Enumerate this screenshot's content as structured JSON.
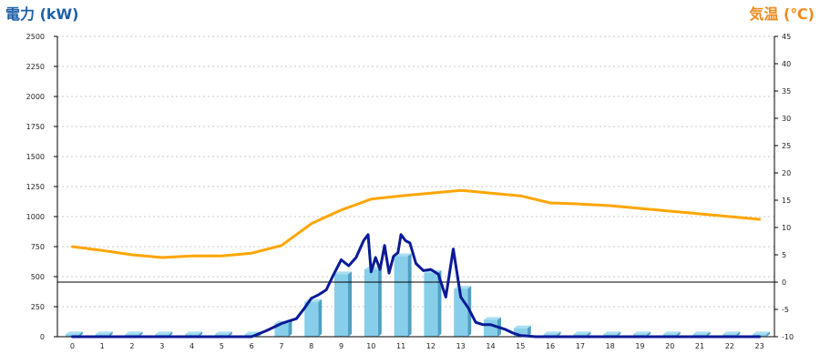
{
  "titles": {
    "left": "電力 (kW)",
    "right": "気温 (℃)"
  },
  "colors": {
    "bar_front": "#87ceea",
    "bar_side": "#4f9fc4",
    "bar_top": "#a9def2",
    "power_line": "#0a1a96",
    "temp_line": "#ffa500",
    "grid": "#c8c8c8",
    "axis": "#000000"
  },
  "chart_data": {
    "type": "bar",
    "categories": [
      "0",
      "1",
      "2",
      "3",
      "4",
      "5",
      "6",
      "7",
      "8",
      "9",
      "10",
      "11",
      "12",
      "13",
      "14",
      "15",
      "16",
      "17",
      "18",
      "19",
      "20",
      "21",
      "22",
      "23"
    ],
    "ylabel": "電力 (kW)",
    "y2label": "気温 (℃)",
    "ylim": [
      0,
      2500
    ],
    "y2lim": [
      -10,
      45
    ],
    "yticks": [
      0,
      250,
      500,
      750,
      1000,
      1250,
      1500,
      1750,
      2000,
      2250,
      2500
    ],
    "y2ticks": [
      -10,
      -5,
      0,
      5,
      10,
      15,
      20,
      25,
      30,
      35,
      40,
      45
    ],
    "grid": true,
    "series": [
      {
        "kind": "bar",
        "axis": "left",
        "values": [
          20,
          20,
          20,
          20,
          20,
          20,
          20,
          110,
          290,
          520,
          560,
          670,
          530,
          400,
          140,
          70,
          20,
          20,
          20,
          20,
          20,
          20,
          20,
          20
        ]
      },
      {
        "kind": "line",
        "axis": "left",
        "x": [
          0,
          1,
          2,
          3,
          4,
          5,
          6,
          6.5,
          7,
          7.25,
          7.5,
          7.75,
          8,
          8.25,
          8.5,
          8.75,
          9,
          9.25,
          9.5,
          9.75,
          9.9,
          10,
          10.15,
          10.3,
          10.45,
          10.6,
          10.75,
          10.9,
          11,
          11.15,
          11.3,
          11.5,
          11.75,
          12,
          12.25,
          12.5,
          12.75,
          13,
          13.25,
          13.5,
          13.75,
          14,
          14.25,
          14.5,
          14.75,
          15,
          15.25,
          15.5,
          15.75,
          16,
          16.5,
          17,
          18,
          19,
          20,
          21,
          22,
          23
        ],
        "values": [
          0,
          0,
          0,
          0,
          0,
          0,
          0,
          50,
          110,
          130,
          150,
          230,
          320,
          350,
          390,
          520,
          640,
          590,
          660,
          800,
          850,
          540,
          660,
          560,
          760,
          530,
          670,
          700,
          850,
          800,
          780,
          610,
          550,
          560,
          520,
          330,
          730,
          330,
          240,
          120,
          100,
          100,
          80,
          60,
          30,
          10,
          5,
          0,
          0,
          0,
          0,
          0,
          0,
          0,
          0,
          0,
          0,
          0
        ]
      },
      {
        "kind": "line",
        "axis": "right",
        "x": [
          0,
          1,
          2,
          3,
          4,
          5,
          6,
          7,
          8,
          9,
          10,
          11,
          12,
          13,
          14,
          15,
          16,
          17,
          18,
          19,
          20,
          21,
          22,
          23
        ],
        "values": [
          6.5,
          5.8,
          5,
          4.5,
          4.8,
          4.8,
          5.3,
          6.7,
          10.7,
          13.2,
          15.2,
          15.8,
          16.3,
          16.8,
          16.3,
          15.8,
          14.5,
          14.3,
          14,
          13.5,
          13,
          12.5,
          12,
          11.5
        ]
      }
    ]
  }
}
